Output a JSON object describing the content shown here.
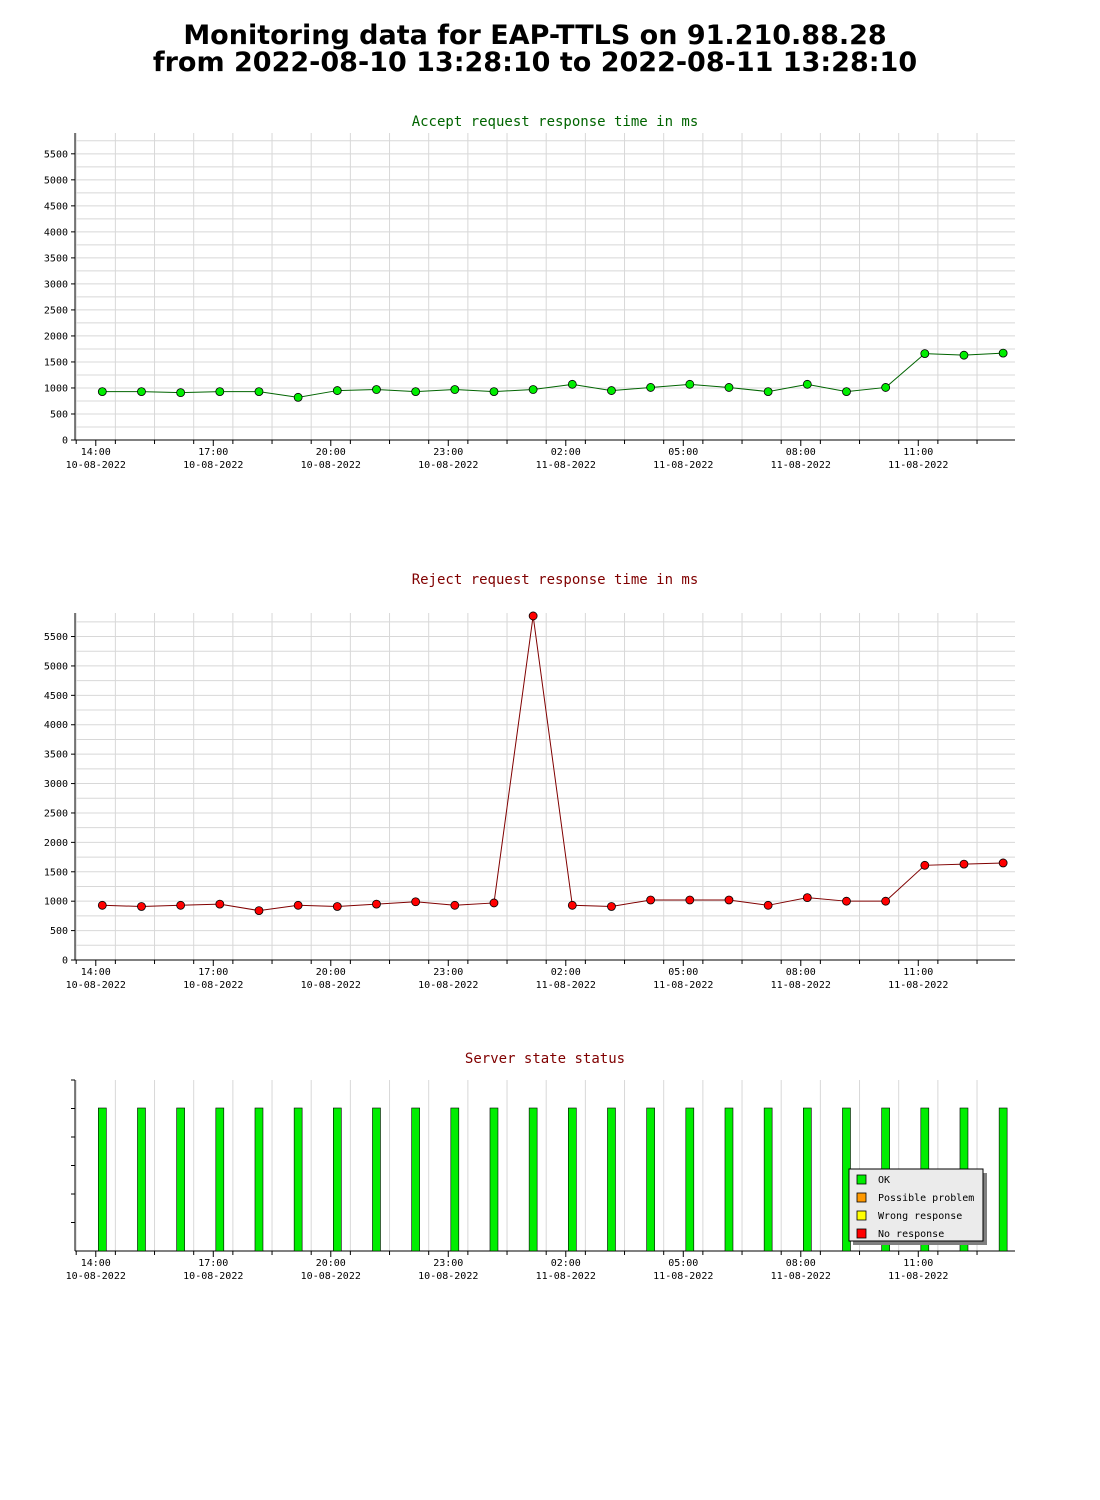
{
  "page": {
    "title_line1": "Monitoring data for EAP-TTLS on 91.210.88.28",
    "title_line2": "from 2022-08-10 13:28:10 to 2022-08-11 13:28:10"
  },
  "colors": {
    "accept_title": "#006400",
    "reject_title": "#800000",
    "status_title": "#800000",
    "accept_line": "#006400",
    "accept_marker": "#00ee00",
    "reject_line": "#800000",
    "reject_marker": "#ff0000",
    "grid": "#d8d8d8",
    "ok": "#00ee00",
    "possible_problem": "#ff9900",
    "wrong_response": "#ffff00",
    "no_response": "#ff0000"
  },
  "x_ticks": [
    {
      "time": "14:00",
      "date": "10-08-2022"
    },
    {
      "time": "17:00",
      "date": "10-08-2022"
    },
    {
      "time": "20:00",
      "date": "10-08-2022"
    },
    {
      "time": "23:00",
      "date": "10-08-2022"
    },
    {
      "time": "02:00",
      "date": "11-08-2022"
    },
    {
      "time": "05:00",
      "date": "11-08-2022"
    },
    {
      "time": "08:00",
      "date": "11-08-2022"
    },
    {
      "time": "11:00",
      "date": "11-08-2022"
    }
  ],
  "chart_data": [
    {
      "type": "line",
      "title": "Accept request response time in ms",
      "ylim": [
        0,
        5900
      ],
      "yticks": [
        0,
        500,
        1000,
        1500,
        2000,
        2500,
        3000,
        3500,
        4000,
        4500,
        5000,
        5500
      ],
      "x": [
        "2022-08-10 14:10",
        "2022-08-10 15:10",
        "2022-08-10 16:10",
        "2022-08-10 17:10",
        "2022-08-10 18:10",
        "2022-08-10 19:10",
        "2022-08-10 20:10",
        "2022-08-10 21:10",
        "2022-08-10 22:10",
        "2022-08-10 23:10",
        "2022-08-11 00:10",
        "2022-08-11 01:10",
        "2022-08-11 02:10",
        "2022-08-11 03:10",
        "2022-08-11 04:10",
        "2022-08-11 05:10",
        "2022-08-11 06:10",
        "2022-08-11 07:10",
        "2022-08-11 08:10",
        "2022-08-11 09:10",
        "2022-08-11 10:10",
        "2022-08-11 11:10",
        "2022-08-11 12:10",
        "2022-08-11 13:10"
      ],
      "values": [
        930,
        930,
        910,
        930,
        930,
        820,
        950,
        970,
        930,
        970,
        930,
        970,
        1070,
        950,
        1010,
        1070,
        1010,
        930,
        1070,
        930,
        1010,
        1660,
        1630,
        1670
      ]
    },
    {
      "type": "line",
      "title": "Reject request response time in ms",
      "ylim": [
        0,
        5900
      ],
      "yticks": [
        0,
        500,
        1000,
        1500,
        2000,
        2500,
        3000,
        3500,
        4000,
        4500,
        5000,
        5500
      ],
      "x": [
        "2022-08-10 14:10",
        "2022-08-10 15:10",
        "2022-08-10 16:10",
        "2022-08-10 17:10",
        "2022-08-10 18:10",
        "2022-08-10 19:10",
        "2022-08-10 20:10",
        "2022-08-10 21:10",
        "2022-08-10 22:10",
        "2022-08-10 23:10",
        "2022-08-11 00:10",
        "2022-08-11 01:10",
        "2022-08-11 02:10",
        "2022-08-11 03:10",
        "2022-08-11 04:10",
        "2022-08-11 05:10",
        "2022-08-11 06:10",
        "2022-08-11 07:10",
        "2022-08-11 08:10",
        "2022-08-11 09:10",
        "2022-08-11 10:10",
        "2022-08-11 11:10",
        "2022-08-11 12:10",
        "2022-08-11 13:10"
      ],
      "values": [
        930,
        910,
        930,
        950,
        840,
        930,
        910,
        950,
        990,
        930,
        970,
        5850,
        930,
        910,
        1020,
        1020,
        1020,
        930,
        1060,
        1000,
        1000,
        1610,
        1630,
        1650
      ]
    },
    {
      "type": "bar",
      "title": "Server state status",
      "x": [
        "2022-08-10 14:10",
        "2022-08-10 15:10",
        "2022-08-10 16:10",
        "2022-08-10 17:10",
        "2022-08-10 18:10",
        "2022-08-10 19:10",
        "2022-08-10 20:10",
        "2022-08-10 21:10",
        "2022-08-10 22:10",
        "2022-08-10 23:10",
        "2022-08-11 00:10",
        "2022-08-11 01:10",
        "2022-08-11 02:10",
        "2022-08-11 03:10",
        "2022-08-11 04:10",
        "2022-08-11 05:10",
        "2022-08-11 06:10",
        "2022-08-11 07:10",
        "2022-08-11 08:10",
        "2022-08-11 09:10",
        "2022-08-11 10:10",
        "2022-08-11 11:10",
        "2022-08-11 12:10",
        "2022-08-11 13:10"
      ],
      "status": [
        "OK",
        "OK",
        "OK",
        "OK",
        "OK",
        "OK",
        "OK",
        "OK",
        "OK",
        "OK",
        "OK",
        "OK",
        "OK",
        "OK",
        "OK",
        "OK",
        "OK",
        "OK",
        "OK",
        "OK",
        "OK",
        "OK",
        "OK",
        "OK"
      ],
      "legend": {
        "placement": "bottom-right",
        "entries": [
          {
            "label": "OK",
            "color_key": "ok"
          },
          {
            "label": "Possible problem",
            "color_key": "possible_problem"
          },
          {
            "label": "Wrong response",
            "color_key": "wrong_response"
          },
          {
            "label": "No response",
            "color_key": "no_response"
          }
        ]
      }
    }
  ]
}
